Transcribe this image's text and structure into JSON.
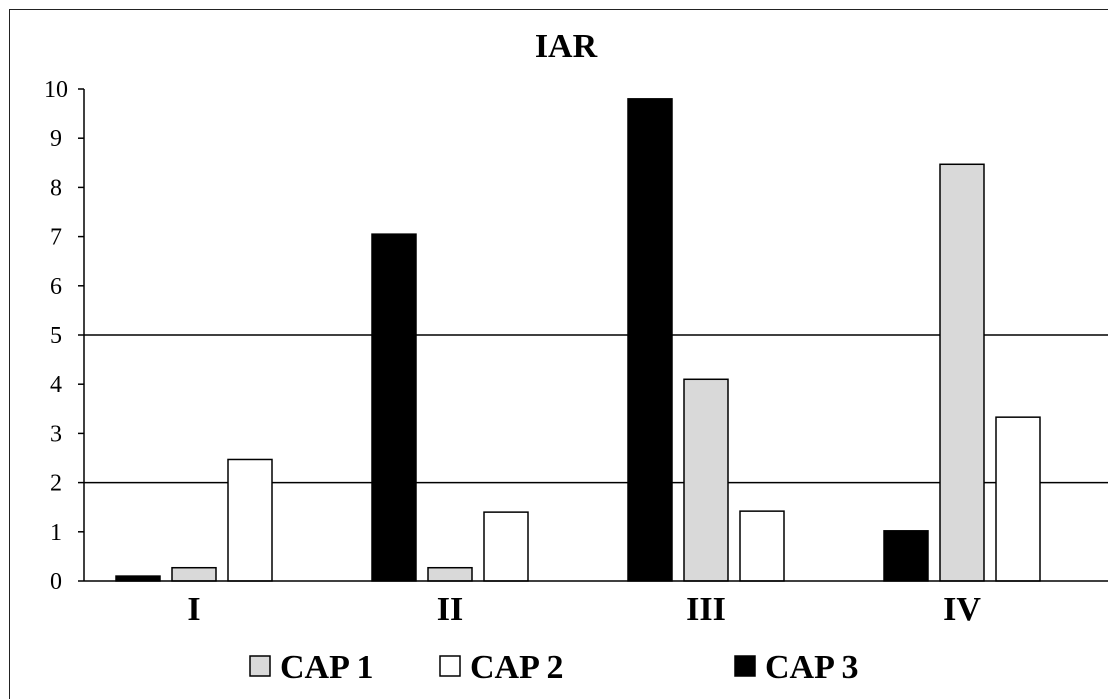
{
  "chart_data": {
    "type": "bar",
    "title": "IAR",
    "xlabel": "",
    "ylabel": "",
    "categories": [
      "I",
      "II",
      "III",
      "IV"
    ],
    "ylim": [
      0,
      10
    ],
    "yticks": [
      0,
      1,
      2,
      3,
      4,
      5,
      6,
      7,
      8,
      9,
      10
    ],
    "reference_lines": [
      2,
      5
    ],
    "grid": false,
    "legend_position": "bottom",
    "series": [
      {
        "name": "CAP 3",
        "color": "#000000",
        "values": [
          0.1,
          7.05,
          9.8,
          1.02
        ]
      },
      {
        "name": "CAP 1",
        "color": "#d9d9d9",
        "values": [
          0.27,
          0.27,
          4.1,
          8.47
        ]
      },
      {
        "name": "CAP 2",
        "color": "#ffffff",
        "values": [
          2.47,
          1.4,
          1.42,
          3.33
        ]
      }
    ],
    "legend": [
      {
        "label": "CAP 1",
        "color": "#d9d9d9"
      },
      {
        "label": "CAP 2",
        "color": "#ffffff"
      },
      {
        "label": "CAP 3",
        "color": "#000000"
      }
    ]
  }
}
